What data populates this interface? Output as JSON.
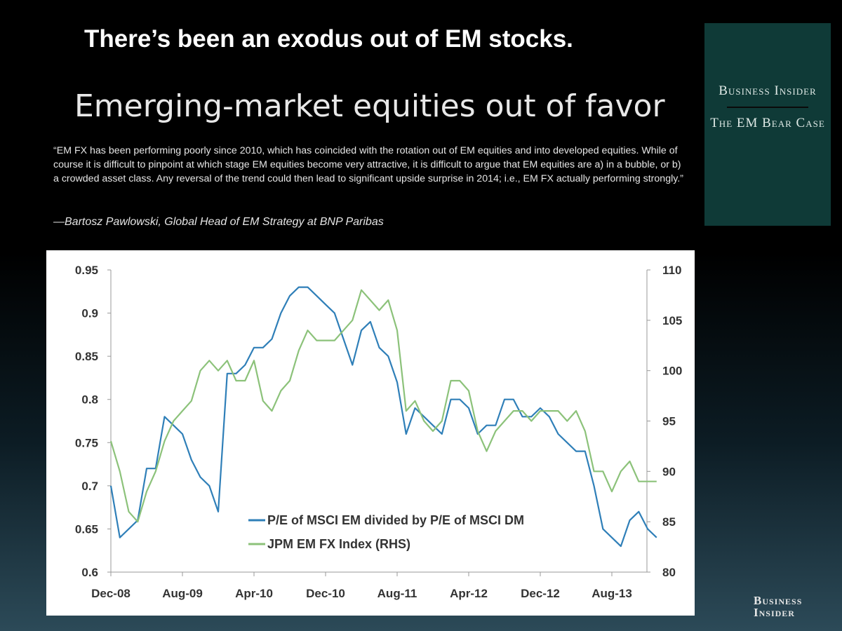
{
  "slide": {
    "headline": "There’s been an exodus out of EM stocks.",
    "subtitle": "Emerging-market equities out of favor",
    "quote": "“EM FX has been performing poorly since 2010, which has coincided with the rotation out of EM equities and into developed equities. While of course it is difficult to pinpoint at which stage EM equities become very attractive, it is difficult to argue that EM equities are a) in a bubble, or b) a crowded asset class. Any reversal of the trend could then lead to significant upside surprise in 2014; i.e., EM FX actually performing strongly.”",
    "attribution": "—Bartosz Pawlowski, Global Head of EM Strategy at BNP Paribas"
  },
  "side_panel": {
    "brand": "Business Insider",
    "topic": "The EM Bear Case",
    "color": "#0f3a37"
  },
  "footer_logo": "Business Insider",
  "chart_data": {
    "type": "line",
    "title": "",
    "xlabel": "",
    "ylabel": "",
    "y2label": "",
    "ylim": [
      0.6,
      0.95
    ],
    "y2lim": [
      80,
      110
    ],
    "yticks": [
      "0.6",
      "0.65",
      "0.7",
      "0.75",
      "0.8",
      "0.85",
      "0.9",
      "0.95"
    ],
    "y2ticks": [
      "80",
      "85",
      "90",
      "95",
      "100",
      "105",
      "110"
    ],
    "xticks": [
      "Dec-08",
      "Aug-09",
      "Apr-10",
      "Dec-10",
      "Aug-11",
      "Apr-12",
      "Dec-12",
      "Aug-13"
    ],
    "grid": false,
    "legend": "bottom-center",
    "x": [
      "2008-12",
      "2009-01",
      "2009-02",
      "2009-03",
      "2009-04",
      "2009-05",
      "2009-06",
      "2009-07",
      "2009-08",
      "2009-09",
      "2009-10",
      "2009-11",
      "2009-12",
      "2010-01",
      "2010-02",
      "2010-03",
      "2010-04",
      "2010-05",
      "2010-06",
      "2010-07",
      "2010-08",
      "2010-09",
      "2010-10",
      "2010-11",
      "2010-12",
      "2011-01",
      "2011-02",
      "2011-03",
      "2011-04",
      "2011-05",
      "2011-06",
      "2011-07",
      "2011-08",
      "2011-09",
      "2011-10",
      "2011-11",
      "2011-12",
      "2012-01",
      "2012-02",
      "2012-03",
      "2012-04",
      "2012-05",
      "2012-06",
      "2012-07",
      "2012-08",
      "2012-09",
      "2012-10",
      "2012-11",
      "2012-12",
      "2013-01",
      "2013-02",
      "2013-03",
      "2013-04",
      "2013-05",
      "2013-06",
      "2013-07",
      "2013-08",
      "2013-09",
      "2013-10",
      "2013-11",
      "2013-12",
      "2014-01"
    ],
    "series": [
      {
        "name": "P/E of MSCI EM divided by P/E of MSCI DM",
        "axis": "left",
        "color": "#2f7fb8",
        "values": [
          0.7,
          0.64,
          0.65,
          0.66,
          0.72,
          0.72,
          0.78,
          0.77,
          0.76,
          0.73,
          0.71,
          0.7,
          0.67,
          0.83,
          0.83,
          0.84,
          0.86,
          0.86,
          0.87,
          0.9,
          0.92,
          0.93,
          0.93,
          0.92,
          0.91,
          0.9,
          0.87,
          0.84,
          0.88,
          0.89,
          0.86,
          0.85,
          0.82,
          0.76,
          0.79,
          0.78,
          0.77,
          0.76,
          0.8,
          0.8,
          0.79,
          0.76,
          0.77,
          0.77,
          0.8,
          0.8,
          0.78,
          0.78,
          0.79,
          0.78,
          0.76,
          0.75,
          0.74,
          0.74,
          0.7,
          0.65,
          0.64,
          0.63,
          0.66,
          0.67,
          0.65,
          0.64
        ]
      },
      {
        "name": "JPM EM FX Index (RHS)",
        "axis": "right",
        "color": "#8cc27a",
        "values": [
          93,
          90,
          86,
          85,
          88,
          90,
          93,
          95,
          96,
          97,
          100,
          101,
          100,
          101,
          99,
          99,
          101,
          97,
          96,
          98,
          99,
          102,
          104,
          103,
          103,
          103,
          104,
          105,
          108,
          107,
          106,
          107,
          104,
          96,
          97,
          95,
          94,
          95,
          99,
          99,
          98,
          94,
          92,
          94,
          95,
          96,
          96,
          95,
          96,
          96,
          96,
          95,
          96,
          94,
          90,
          90,
          88,
          90,
          91,
          89,
          89,
          89
        ]
      }
    ]
  }
}
